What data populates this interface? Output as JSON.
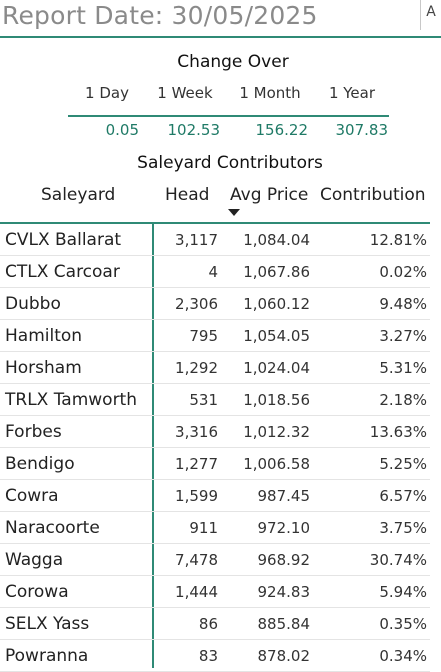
{
  "header": {
    "report_date": "Report Date: 30/05/2025",
    "corner_label": "A"
  },
  "colors": {
    "accent": "#2f8a76",
    "value_text": "#1f7a66",
    "title_gray": "#8a8a8a"
  },
  "change_over": {
    "title": "Change Over",
    "periods": [
      "1 Day",
      "1 Week",
      "1 Month",
      "1 Year"
    ],
    "values": [
      "0.05",
      "102.53",
      "156.22",
      "307.83"
    ]
  },
  "contributors": {
    "title": "Saleyard Contributors",
    "columns": {
      "saleyard": "Saleyard",
      "head": "Head",
      "avg_price": "Avg Price",
      "contribution": "Contribution"
    },
    "sort_icon": "sort-descending-icon",
    "rows": [
      {
        "saleyard": "CVLX Ballarat",
        "head": "3,117",
        "avg_price": "1,084.04",
        "contribution": "12.81%"
      },
      {
        "saleyard": "CTLX Carcoar",
        "head": "4",
        "avg_price": "1,067.86",
        "contribution": "0.02%"
      },
      {
        "saleyard": "Dubbo",
        "head": "2,306",
        "avg_price": "1,060.12",
        "contribution": "9.48%"
      },
      {
        "saleyard": "Hamilton",
        "head": "795",
        "avg_price": "1,054.05",
        "contribution": "3.27%"
      },
      {
        "saleyard": "Horsham",
        "head": "1,292",
        "avg_price": "1,024.04",
        "contribution": "5.31%"
      },
      {
        "saleyard": "TRLX Tamworth",
        "head": "531",
        "avg_price": "1,018.56",
        "contribution": "2.18%"
      },
      {
        "saleyard": "Forbes",
        "head": "3,316",
        "avg_price": "1,012.32",
        "contribution": "13.63%"
      },
      {
        "saleyard": "Bendigo",
        "head": "1,277",
        "avg_price": "1,006.58",
        "contribution": "5.25%"
      },
      {
        "saleyard": "Cowra",
        "head": "1,599",
        "avg_price": "987.45",
        "contribution": "6.57%"
      },
      {
        "saleyard": "Naracoorte",
        "head": "911",
        "avg_price": "972.10",
        "contribution": "3.75%"
      },
      {
        "saleyard": "Wagga",
        "head": "7,478",
        "avg_price": "968.92",
        "contribution": "30.74%"
      },
      {
        "saleyard": "Corowa",
        "head": "1,444",
        "avg_price": "924.83",
        "contribution": "5.94%"
      },
      {
        "saleyard": "SELX Yass",
        "head": "86",
        "avg_price": "885.84",
        "contribution": "0.35%"
      },
      {
        "saleyard": "Powranna",
        "head": "83",
        "avg_price": "878.02",
        "contribution": "0.34%"
      }
    ]
  }
}
